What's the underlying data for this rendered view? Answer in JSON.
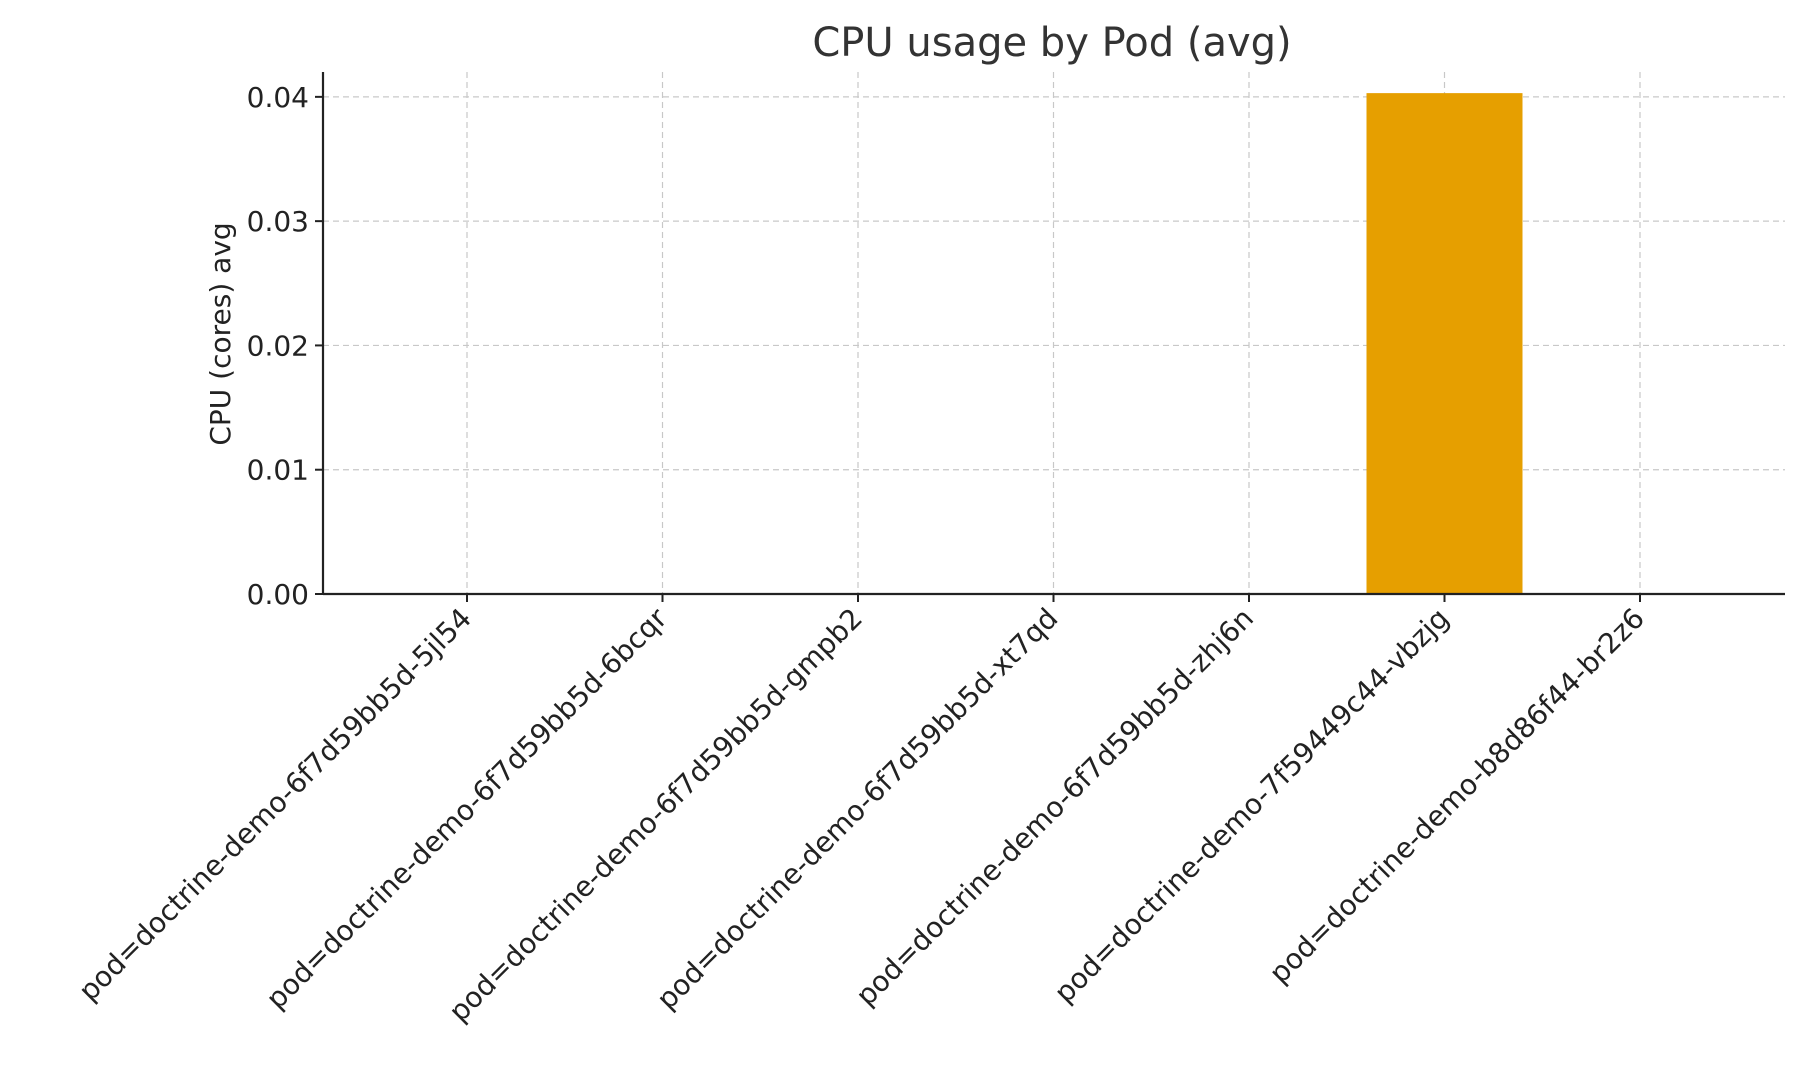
{
  "chart_data": {
    "type": "bar",
    "title": "CPU usage by Pod (avg)",
    "xlabel": "",
    "ylabel": "CPU (cores) avg",
    "categories": [
      "pod=doctrine-demo-6f7d59bb5d-5jl54",
      "pod=doctrine-demo-6f7d59bb5d-6bcqr",
      "pod=doctrine-demo-6f7d59bb5d-gmpb2",
      "pod=doctrine-demo-6f7d59bb5d-xt7qd",
      "pod=doctrine-demo-6f7d59bb5d-zhj6n",
      "pod=doctrine-demo-7f59449c44-vbzjg",
      "pod=doctrine-demo-b8d86f44-br2z6"
    ],
    "values": [
      0.0,
      0.0,
      0.0,
      0.0,
      0.0,
      0.0403,
      0.0
    ],
    "ylim": [
      0,
      0.042
    ],
    "yticks": [
      "0.00",
      "0.01",
      "0.02",
      "0.03",
      "0.04"
    ],
    "grid": true,
    "bar_color": "#E69F00"
  }
}
